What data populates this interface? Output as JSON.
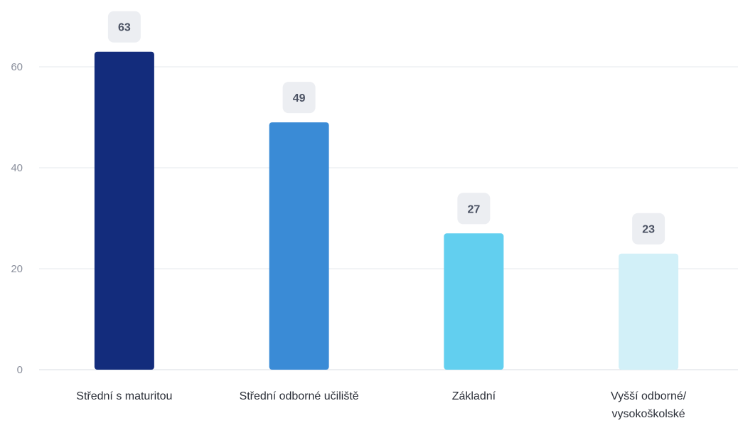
{
  "chart_data": {
    "type": "bar",
    "categories": [
      [
        "Střední s maturitou"
      ],
      [
        "Střední odborné učiliště"
      ],
      [
        "Základní"
      ],
      [
        "Vyšší odborné/",
        "vysokoškolské"
      ]
    ],
    "values": [
      63,
      49,
      27,
      23
    ],
    "value_labels": [
      "63",
      "49",
      "27",
      "23"
    ],
    "bar_colors": [
      "#132c7c",
      "#3a8bd6",
      "#62cfef",
      "#d2f0f8"
    ],
    "yticks": [
      0,
      20,
      40,
      60
    ],
    "ylim": [
      0,
      60
    ],
    "grid": true,
    "legend": "none"
  }
}
